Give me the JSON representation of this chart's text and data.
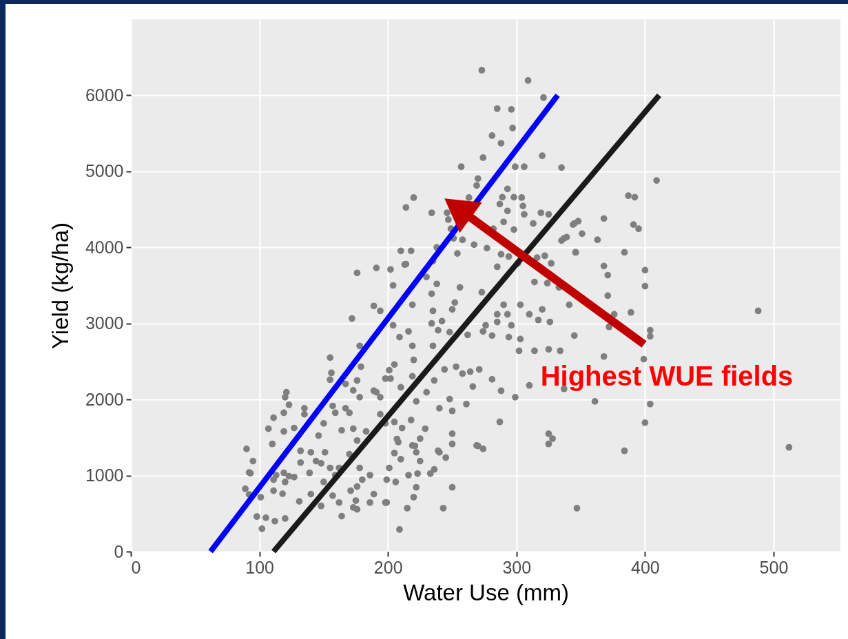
{
  "chart_data": {
    "type": "scatter",
    "xlabel": "Water Use (mm)",
    "ylabel": "Yield (kg/ha)",
    "xlim": [
      0,
      552
    ],
    "ylim": [
      0,
      7000
    ],
    "xticks": [
      0,
      100,
      200,
      300,
      400,
      500
    ],
    "yticks": [
      0,
      1000,
      2000,
      3000,
      4000,
      5000,
      6000
    ],
    "grid": true,
    "annotations": [
      "Highest WUE fields"
    ],
    "series": [
      {
        "marker": "circle",
        "color": "#7f7f7f",
        "x": [
          90,
          92,
          95,
          93,
          89,
          92,
          101,
          98,
          105,
          112,
          120,
          102,
          111,
          113,
          119,
          123,
          127,
          120,
          118,
          111,
          131,
          132,
          140,
          132,
          144,
          151,
          148,
          139,
          150,
          155,
          162,
          159,
          121,
          120,
          123,
          119,
          111,
          107,
          135,
          135,
          119,
          127,
          110,
          150,
          146,
          157,
          159,
          167,
          170,
          164,
          173,
          183,
          176,
          170,
          178,
          180,
          176,
          171,
          175,
          176,
          162,
          164,
          157,
          148,
          140,
          186,
          201,
          199,
          189,
          186,
          198,
          173,
          209,
          155,
          156,
          155,
          178,
          179,
          167,
          176,
          173,
          178,
          189,
          194,
          198,
          205,
          172,
          176,
          191,
          202,
          213,
          204,
          210,
          218,
          214,
          220,
          214,
          234,
          235,
          230,
          238,
          256,
          273,
          252,
          250,
          219,
          194,
          235,
          242,
          234,
          239,
          216,
          209,
          219,
          235,
          220,
          201,
          210,
          194,
          198,
          219,
          236,
          244,
          230,
          253,
          264,
          271,
          266,
          281,
          288,
          299,
          248,
          250,
          261,
          222,
          240,
          218,
          211,
          287,
          229,
          250,
          250,
          225,
          221,
          222,
          208,
          205,
          240,
          245,
          270,
          274,
          325,
          328,
          325,
          225,
          216,
          223,
          236,
          233,
          250,
          222,
          220,
          199,
          215,
          243,
          347,
          206,
          273,
          309,
          321,
          285,
          296,
          297,
          281,
          288,
          320,
          274,
          257,
          299,
          306,
          335,
          270,
          269,
          293,
          289,
          287,
          293,
          298,
          304,
          305,
          306,
          263,
          246,
          247,
          290,
          298,
          313,
          319,
          325,
          344,
          339,
          335,
          282,
          249,
          251,
          258,
          267,
          277,
          254,
          238,
          288,
          294,
          285,
          301,
          316,
          322,
          327,
          346,
          409,
          387,
          392,
          345,
          348,
          368,
          391,
          395,
          351,
          337,
          363,
          384,
          346,
          368,
          371,
          400,
          400,
          314,
          324,
          333,
          371,
          341,
          320,
          326,
          317,
          310,
          376,
          389,
          372,
          404,
          404,
          345,
          314,
          325,
          334,
          368,
          399,
          290,
          285,
          293,
          303,
          276,
          285,
          274,
          281,
          296,
          294,
          303,
          302,
          262,
          248,
          258,
          400,
          404,
          361,
          384,
          488,
          512,
          337,
          310,
          191,
          234,
          189,
          204,
          202,
          205,
          207,
          210,
          219,
          239,
          269
        ],
        "values": [
          1350,
          1040,
          1190,
          1030,
          825,
          750,
          715,
          460,
          445,
          400,
          435,
          300,
          945,
          1005,
          1035,
          990,
          980,
          915,
          760,
          800,
          660,
          1325,
          1305,
          1170,
          1190,
          1305,
          1160,
          1035,
          915,
          1100,
          1100,
          1005,
          2095,
          2030,
          1930,
          1825,
          1760,
          1615,
          1885,
          1805,
          1580,
          1625,
          1415,
          1685,
          1525,
          1915,
          1825,
          1885,
          1825,
          1595,
          1615,
          1580,
          1460,
          1280,
          1100,
          945,
          855,
          800,
          670,
          555,
          645,
          465,
          735,
          600,
          755,
          1005,
          1100,
          945,
          755,
          645,
          645,
          580,
          290,
          2550,
          2350,
          2260,
          2705,
          2430,
          2205,
          2250,
          2120,
          2030,
          2115,
          2030,
          2275,
          2460,
          3065,
          3665,
          3730,
          3710,
          3775,
          3500,
          3955,
          3955,
          3780,
          4655,
          4525,
          4455,
          3820,
          3610,
          3520,
          3475,
          3410,
          3275,
          3185,
          3245,
          3165,
          3165,
          3030,
          3000,
          2910,
          2895,
          2820,
          2705,
          2705,
          2520,
          2385,
          2160,
          1805,
          1685,
          2305,
          2250,
          2395,
          2095,
          2430,
          2365,
          2395,
          2170,
          2265,
          2115,
          2030,
          2005,
          1850,
          1940,
          1975,
          1885,
          1730,
          1625,
          1705,
          1615,
          1550,
          1415,
          1485,
          1390,
          1305,
          1440,
          1295,
          1305,
          1235,
          1390,
          1350,
          1550,
          1485,
          1415,
          1190,
          1005,
          1025,
          1080,
          1025,
          845,
          845,
          715,
          645,
          570,
          570,
          570,
          915,
          6330,
          6195,
          5970,
          5825,
          5815,
          5570,
          5470,
          5370,
          5205,
          5180,
          5060,
          5060,
          5060,
          5050,
          4905,
          4815,
          4770,
          4660,
          4570,
          4480,
          4660,
          4655,
          4545,
          4435,
          4655,
          4455,
          4365,
          4335,
          4235,
          4315,
          4455,
          4435,
          4300,
          4135,
          4090,
          4245,
          4245,
          4120,
          4100,
          4035,
          3990,
          3920,
          4000,
          3910,
          3880,
          3745,
          3790,
          3865,
          3890,
          3790,
          3935,
          4880,
          4680,
          4660,
          4315,
          4345,
          4380,
          4300,
          4245,
          4180,
          4120,
          4100,
          3935,
          3935,
          3755,
          3635,
          3700,
          3490,
          3545,
          3530,
          3475,
          3365,
          3245,
          3185,
          3020,
          3045,
          3120,
          3120,
          3145,
          2955,
          2910,
          2830,
          2840,
          2640,
          2660,
          2640,
          2565,
          2530,
          3245,
          3120,
          3120,
          3245,
          2975,
          3020,
          2895,
          2840,
          2975,
          2820,
          2795,
          2640,
          2850,
          2885,
          2340,
          1695,
          1940,
          1975,
          1325,
          3165,
          1370,
          2140,
          2185,
          2095,
          3390,
          3230,
          2975,
          2275,
          1705,
          1480,
          1215,
          1395,
          1325,
          1395
        ]
      },
      {
        "type": "line",
        "color": "#0000ff",
        "x": [
          62,
          332
        ],
        "values": [
          0,
          6000
        ]
      },
      {
        "type": "line",
        "color": "#1a1a1a",
        "x": [
          111,
          411
        ],
        "values": [
          0,
          6000
        ]
      }
    ]
  }
}
